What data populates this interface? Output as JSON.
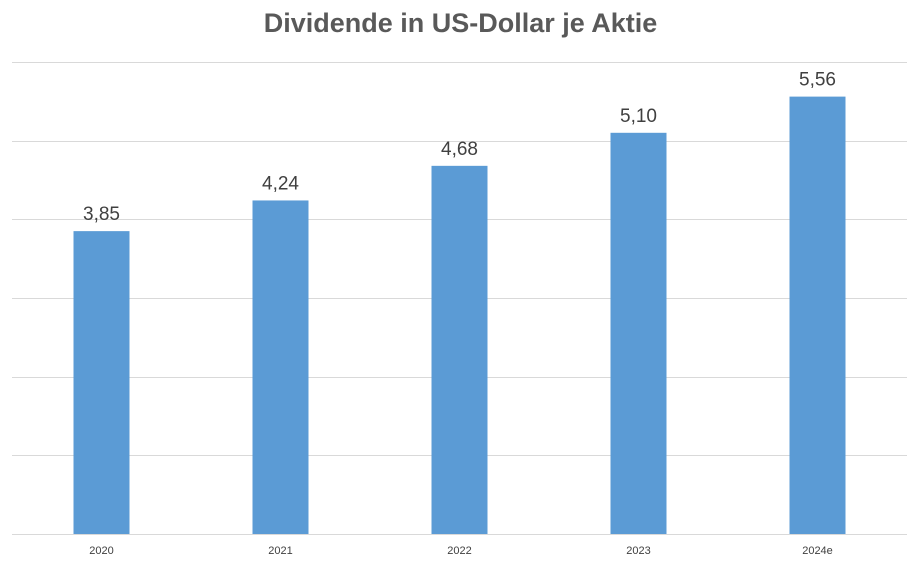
{
  "chart_data": {
    "type": "bar",
    "title": "Dividende in US-Dollar je Aktie",
    "categories": [
      "2020",
      "2021",
      "2022",
      "2023",
      "2024e"
    ],
    "values": [
      3.85,
      4.24,
      4.68,
      5.1,
      5.56
    ],
    "data_labels": [
      "3,85",
      "4,24",
      "4,68",
      "5,10",
      "5,56"
    ],
    "ylim": [
      0,
      6
    ],
    "grid": true,
    "legend": "none",
    "bar_color": "#5b9bd5"
  }
}
